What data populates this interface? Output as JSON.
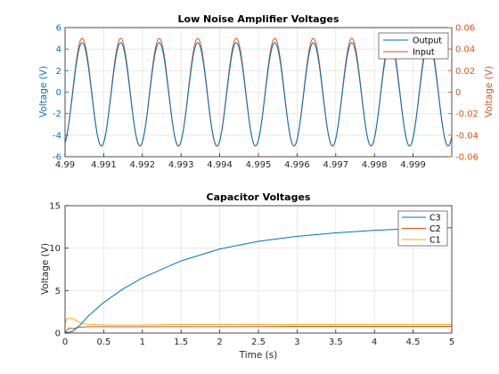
{
  "chart_data": [
    {
      "type": "line",
      "title": "Low Noise Amplifier Voltages",
      "xlabel": "",
      "ylabel_left": "Voltage (V)",
      "ylabel_right": "Voltage (V)",
      "xlim": [
        4.99,
        5.0
      ],
      "ylim_left": [
        -6,
        6
      ],
      "ylim_right": [
        -0.06,
        0.06
      ],
      "x_ticks": [
        "4.99",
        "4.991",
        "4.992",
        "4.993",
        "4.994",
        "4.995",
        "4.996",
        "4.997",
        "4.998",
        "4.999"
      ],
      "y_ticks_left": [
        "-6",
        "-4",
        "-2",
        "0",
        "2",
        "4",
        "6"
      ],
      "y_ticks_right": [
        "-0.06",
        "-0.04",
        "-0.02",
        "0",
        "0.02",
        "0.04",
        "0.06"
      ],
      "grid": true,
      "legend_position": "top-right",
      "series": [
        {
          "name": "Output",
          "axis": "left",
          "color": "#0072BD",
          "amplitude": 4.8,
          "offset": -0.2,
          "frequency_hz": 1000,
          "phase_deg": -90
        },
        {
          "name": "Input",
          "axis": "right",
          "color": "#D95319",
          "amplitude": 0.05,
          "offset": 0,
          "frequency_hz": 1000,
          "phase_deg": -90
        }
      ]
    },
    {
      "type": "line",
      "title": "Capacitor Voltages",
      "xlabel": "Time (s)",
      "ylabel": "Voltage (V)",
      "xlim": [
        0,
        5
      ],
      "ylim": [
        0,
        15
      ],
      "x_ticks": [
        "0",
        "0.5",
        "1",
        "1.5",
        "2",
        "2.5",
        "3",
        "3.5",
        "4",
        "4.5",
        "5"
      ],
      "y_ticks": [
        "0",
        "5",
        "10",
        "15"
      ],
      "grid": true,
      "legend_position": "top-right",
      "series": [
        {
          "name": "C3",
          "color": "#0072BD",
          "x": [
            0,
            0.1,
            0.2,
            0.3,
            0.5,
            0.75,
            1.0,
            1.5,
            2.0,
            2.5,
            3.0,
            3.5,
            4.0,
            4.5,
            5.0
          ],
          "y": [
            0,
            0.2,
            1.0,
            2.0,
            3.6,
            5.2,
            6.5,
            8.5,
            9.9,
            10.8,
            11.4,
            11.8,
            12.1,
            12.3,
            12.4
          ]
        },
        {
          "name": "C2",
          "color": "#D95319",
          "x": [
            0,
            0.05,
            0.1,
            0.15,
            0.2,
            0.3,
            1.0,
            2.2,
            3.0,
            5.0
          ],
          "y": [
            0,
            0.6,
            0.5,
            0.6,
            0.7,
            0.75,
            0.75,
            0.75,
            0.78,
            0.78
          ]
        },
        {
          "name": "C1",
          "color": "#EDB120",
          "x": [
            0,
            0.02,
            0.1,
            0.13,
            0.2,
            0.3,
            0.5,
            1.0,
            1.4,
            2.2,
            3.0,
            5.0
          ],
          "y": [
            1.0,
            1.7,
            1.7,
            1.55,
            1.2,
            1.0,
            0.95,
            0.95,
            1.0,
            1.0,
            1.0,
            1.0
          ]
        }
      ]
    }
  ]
}
